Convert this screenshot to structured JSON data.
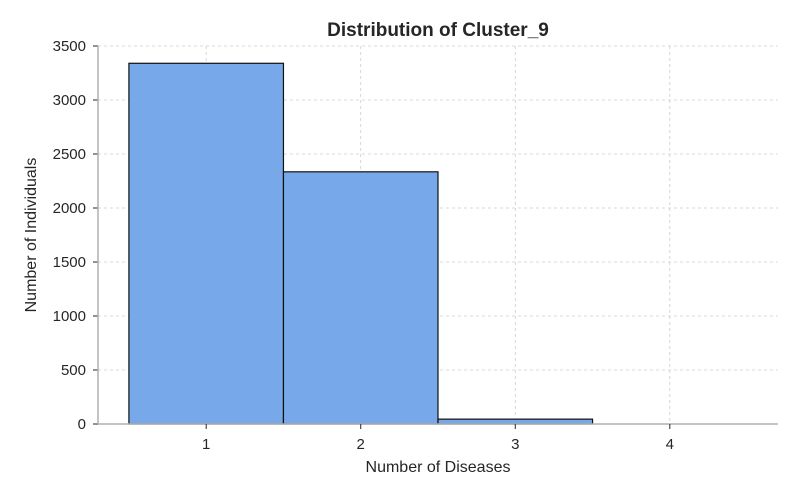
{
  "chart_data": {
    "type": "bar",
    "title": "Distribution of Cluster_9",
    "xlabel": "Number of Diseases",
    "ylabel": "Number of Individuals",
    "categories": [
      "1",
      "2",
      "3",
      "4"
    ],
    "values": [
      3340,
      2335,
      45,
      0
    ],
    "ylim": [
      0,
      3500
    ],
    "yticks": [
      0,
      500,
      1000,
      1500,
      2000,
      2500,
      3000,
      3500
    ],
    "grid": true,
    "bar_color": "#77a9ea",
    "edge_color": "#111111"
  }
}
